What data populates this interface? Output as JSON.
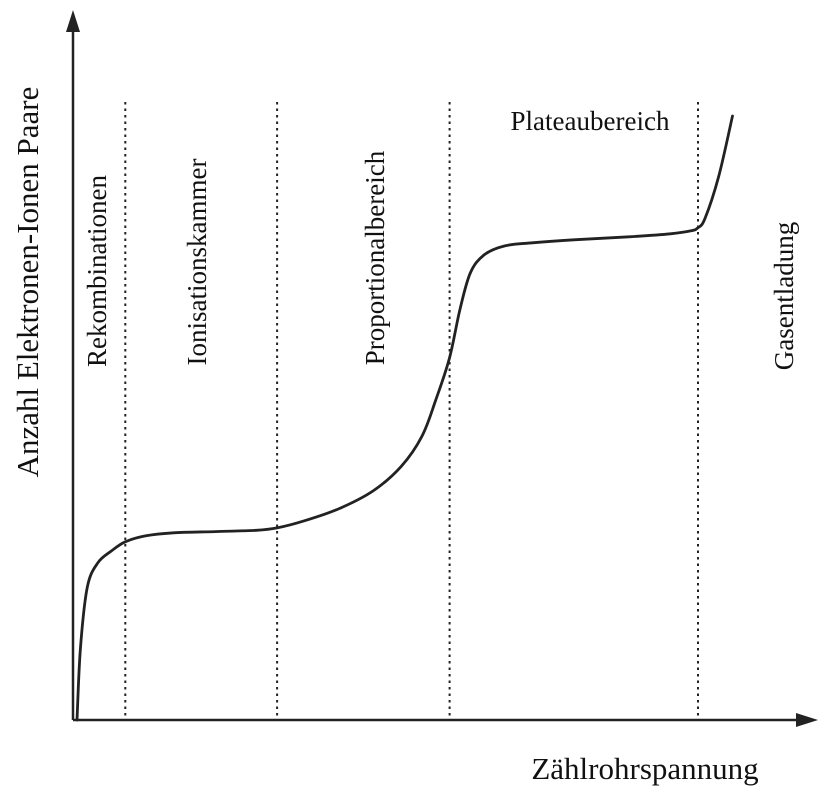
{
  "chart_data": {
    "type": "line",
    "title": "",
    "xlabel": "Zählrohrspannung",
    "ylabel": "Anzahl Elektronen-Ionen Paare",
    "grid": false,
    "regions": [
      {
        "name": "Rekombinationen",
        "orientation": "vertical"
      },
      {
        "name": "Ionisationskammer",
        "orientation": "vertical"
      },
      {
        "name": "Proportionalbereich",
        "orientation": "vertical"
      },
      {
        "name": "Plateaubereich",
        "orientation": "horizontal"
      },
      {
        "name": "Gasentladung",
        "orientation": "vertical"
      }
    ],
    "region_boundaries": [
      0.07,
      0.29,
      0.54,
      0.9
    ],
    "xlim": [
      0,
      1
    ],
    "ylim": [
      0,
      1
    ],
    "series": [
      {
        "x": [
          0.0,
          0.005,
          0.015,
          0.03,
          0.05,
          0.07,
          0.1,
          0.14,
          0.2,
          0.26,
          0.29,
          0.33,
          0.38,
          0.43,
          0.47,
          0.5,
          0.52,
          0.54,
          0.555,
          0.57,
          0.59,
          0.62,
          0.66,
          0.72,
          0.8,
          0.86,
          0.89,
          0.9,
          0.91,
          0.93,
          0.95
        ],
        "y": [
          0.0,
          0.12,
          0.22,
          0.26,
          0.28,
          0.295,
          0.305,
          0.31,
          0.312,
          0.314,
          0.318,
          0.33,
          0.35,
          0.38,
          0.42,
          0.47,
          0.53,
          0.6,
          0.68,
          0.74,
          0.77,
          0.785,
          0.79,
          0.795,
          0.8,
          0.805,
          0.81,
          0.815,
          0.83,
          0.9,
          1.0
        ]
      }
    ]
  }
}
